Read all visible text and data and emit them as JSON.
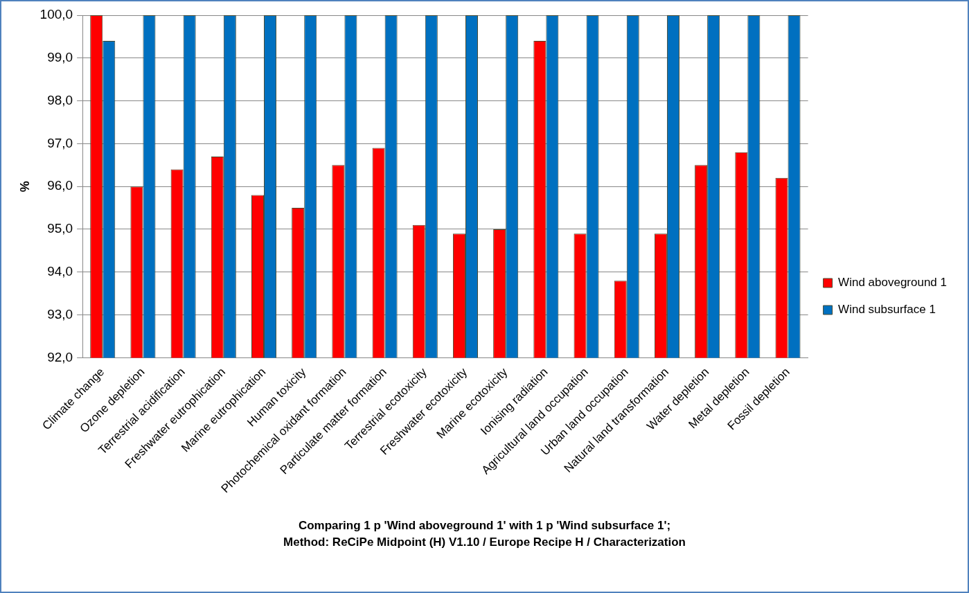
{
  "chart_data": {
    "type": "bar",
    "title": "Comparing 1 p 'Wind aboveground 1' with 1 p 'Wind subsurface 1';",
    "subtitle": "Method: ReCiPe Midpoint (H) V1.10 / Europe Recipe H / Characterization",
    "ylabel": "%",
    "categories": [
      "Climate change",
      "Ozone depletion",
      "Terrestrial acidification",
      "Freshwater eutrophication",
      "Marine eutrophication",
      "Human toxicity",
      "Photochemical oxidant formation",
      "Particulate matter formation",
      "Terrestrial ecotoxicity",
      "Freshwater ecotoxicity",
      "Marine ecotoxicity",
      "Ionising radiation",
      "Agricultural land occupation",
      "Urban land occupation",
      "Natural land transformation",
      "Water depletion",
      "Metal depletion",
      "Fossil depletion"
    ],
    "series": [
      {
        "name": "Wind aboveground 1",
        "color": "#ff0000",
        "values": [
          100,
          96.0,
          96.4,
          96.7,
          95.8,
          95.5,
          96.5,
          96.9,
          95.1,
          94.9,
          95.0,
          99.4,
          94.9,
          93.8,
          94.9,
          96.5,
          96.8,
          96.2
        ]
      },
      {
        "name": "Wind subsurface 1",
        "color": "#0070c0",
        "values": [
          99.4,
          100,
          100,
          100,
          100,
          100,
          100,
          100,
          100,
          100,
          100,
          100,
          100,
          100,
          100,
          100,
          100,
          100
        ]
      }
    ],
    "ylim": [
      92,
      100
    ],
    "yticks": [
      {
        "value": 92,
        "label": "92,0"
      },
      {
        "value": 93,
        "label": "93,0"
      },
      {
        "value": 94,
        "label": "94,0"
      },
      {
        "value": 95,
        "label": "95,0"
      },
      {
        "value": 96,
        "label": "96,0"
      },
      {
        "value": 97,
        "label": "97,0"
      },
      {
        "value": 98,
        "label": "98,0"
      },
      {
        "value": 99,
        "label": "99,0"
      },
      {
        "value": 100,
        "label": "100,0"
      }
    ],
    "grid": "y",
    "legend": "right"
  }
}
